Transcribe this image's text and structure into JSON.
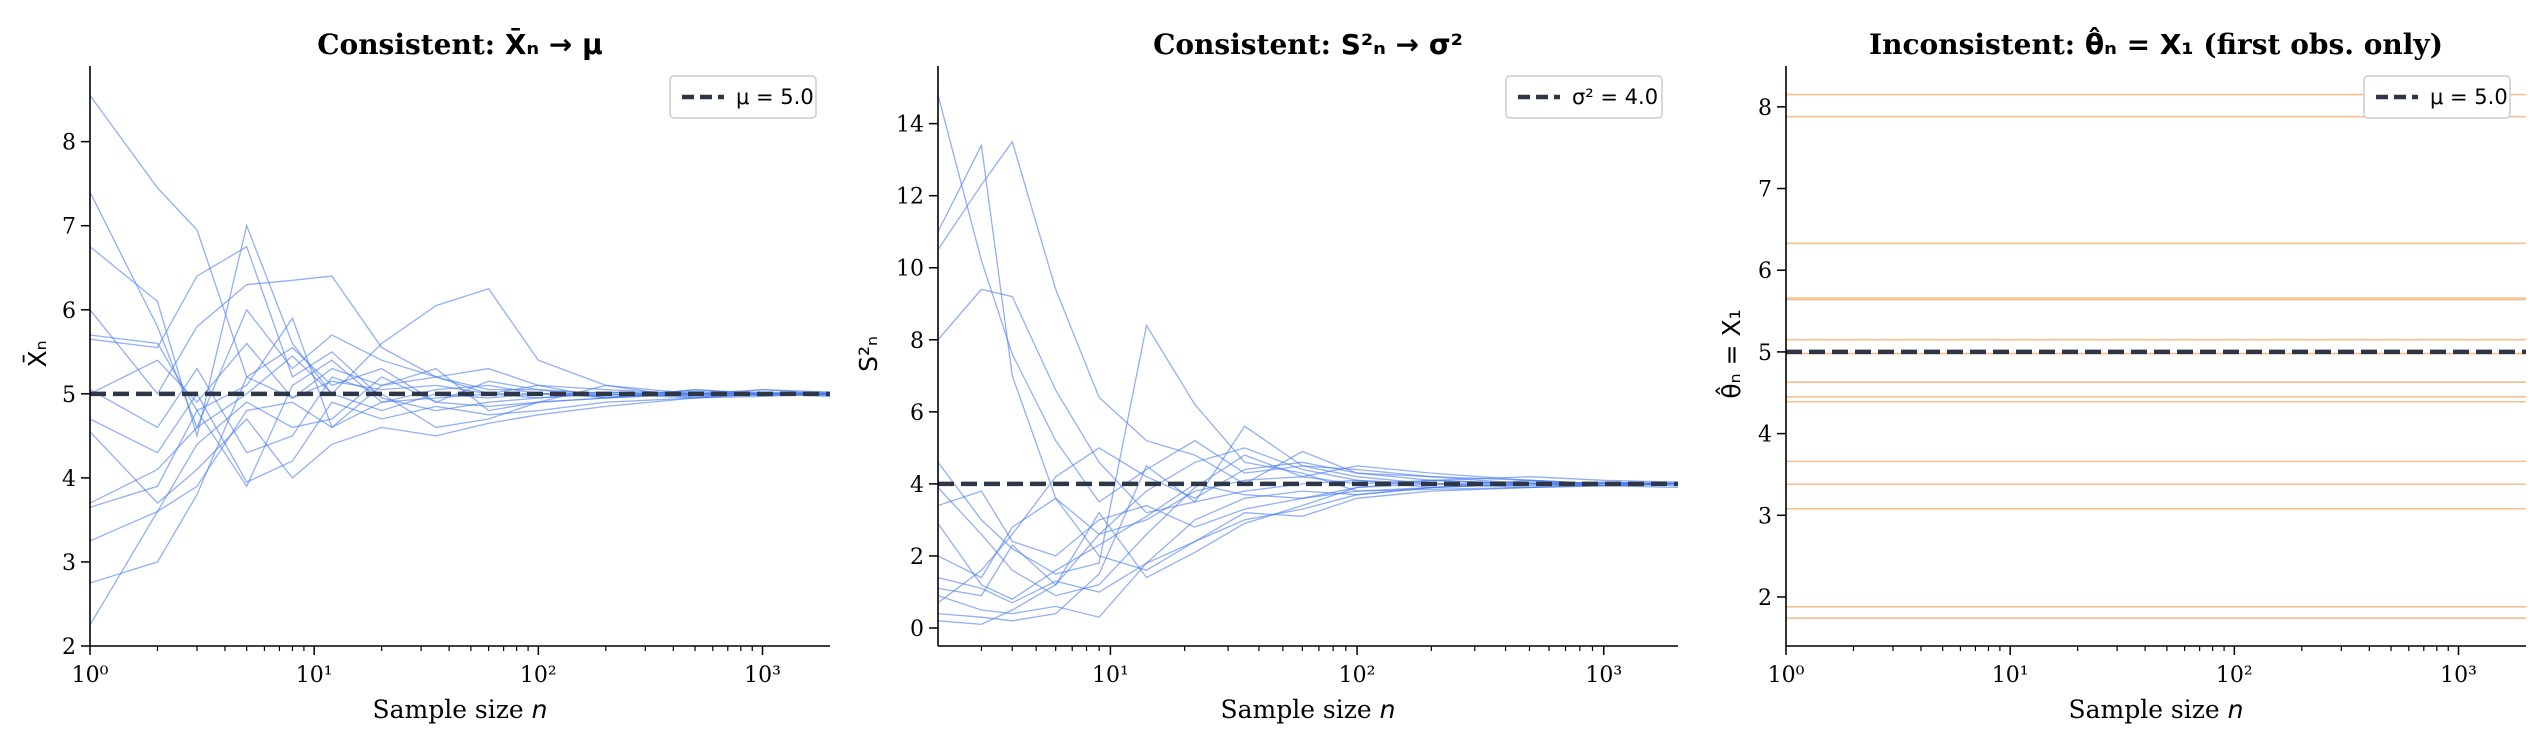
{
  "colors": {
    "path_line": "#4a7cf0",
    "inconsistent_line": "#f6b47a",
    "true_value_line": "#2d3748",
    "legend_border": "#cccccc"
  },
  "chart_data": [
    {
      "type": "line",
      "title_main": "Consistent: ",
      "title_math": "X̄ₙ → μ",
      "xlabel_main": "Sample size ",
      "xlabel_math": "n",
      "ylabel": "X̄ₙ",
      "xscale": "log",
      "xlim": [
        1,
        2000
      ],
      "ylim": [
        2.0,
        8.9
      ],
      "xticks": [
        {
          "value": 1,
          "label": "10⁰"
        },
        {
          "value": 10,
          "label": "10¹"
        },
        {
          "value": 100,
          "label": "10²"
        },
        {
          "value": 1000,
          "label": "10³"
        }
      ],
      "yticks": [
        2,
        3,
        4,
        5,
        6,
        7,
        8
      ],
      "grid": false,
      "reference": {
        "value": 5.0,
        "legend": "μ = 5.0"
      },
      "legend_position": "top-right",
      "path_count": 15,
      "series": [
        {
          "x": [
            1,
            2,
            3,
            5,
            8,
            12,
            20,
            35,
            60,
            100,
            200,
            500,
            1000,
            2000
          ],
          "y": [
            8.55,
            7.45,
            6.95,
            5.2,
            5.55,
            5.1,
            5.3,
            4.9,
            5.15,
            5.05,
            4.95,
            5.05,
            5.0,
            5.0
          ]
        },
        {
          "x": [
            1,
            2,
            3,
            5,
            8,
            12,
            20,
            35,
            60,
            100,
            200,
            500,
            1000,
            2000
          ],
          "y": [
            7.4,
            5.8,
            4.6,
            6.0,
            5.3,
            5.7,
            5.4,
            5.2,
            5.0,
            5.1,
            5.05,
            5.0,
            4.98,
            5.0
          ]
        },
        {
          "x": [
            1,
            2,
            3,
            5,
            8,
            12,
            20,
            35,
            60,
            100,
            200,
            500,
            1000,
            2000
          ],
          "y": [
            6.75,
            6.1,
            4.5,
            7.0,
            5.6,
            5.0,
            5.6,
            6.05,
            6.25,
            5.4,
            5.1,
            5.0,
            5.05,
            5.02
          ]
        },
        {
          "x": [
            1,
            2,
            3,
            5,
            8,
            12,
            20,
            35,
            60,
            100,
            200,
            500,
            1000,
            2000
          ],
          "y": [
            6.0,
            5.0,
            5.8,
            6.3,
            6.35,
            6.4,
            5.55,
            5.2,
            5.3,
            5.1,
            4.95,
            5.05,
            5.0,
            4.98
          ]
        },
        {
          "x": [
            1,
            2,
            3,
            5,
            8,
            12,
            20,
            35,
            60,
            100,
            200,
            500,
            1000,
            2000
          ],
          "y": [
            5.7,
            5.6,
            4.8,
            5.1,
            5.9,
            4.6,
            5.1,
            5.3,
            4.8,
            4.9,
            5.1,
            4.95,
            5.05,
            5.0
          ]
        },
        {
          "x": [
            1,
            2,
            3,
            5,
            8,
            12,
            20,
            35,
            60,
            100,
            200,
            500,
            1000,
            2000
          ],
          "y": [
            5.65,
            5.55,
            6.4,
            6.75,
            5.2,
            5.5,
            4.95,
            4.8,
            4.9,
            4.95,
            5.0,
            4.95,
            4.97,
            5.0
          ]
        },
        {
          "x": [
            1,
            2,
            3,
            5,
            8,
            12,
            20,
            35,
            60,
            100,
            200,
            500,
            1000,
            2000
          ],
          "y": [
            5.05,
            4.6,
            5.3,
            4.3,
            4.5,
            5.2,
            5.0,
            4.6,
            4.7,
            4.9,
            4.95,
            5.0,
            5.02,
            5.0
          ]
        },
        {
          "x": [
            1,
            2,
            3,
            5,
            8,
            12,
            20,
            35,
            60,
            100,
            200,
            500,
            1000,
            2000
          ],
          "y": [
            4.7,
            4.3,
            5.0,
            3.95,
            4.2,
            4.9,
            4.7,
            4.85,
            4.75,
            4.8,
            4.9,
            4.95,
            5.0,
            4.97
          ]
        },
        {
          "x": [
            1,
            2,
            3,
            5,
            8,
            12,
            20,
            35,
            60,
            100,
            200,
            500,
            1000,
            2000
          ],
          "y": [
            4.55,
            3.7,
            4.1,
            4.7,
            4.0,
            4.4,
            4.6,
            4.5,
            4.65,
            4.75,
            4.85,
            4.95,
            5.0,
            5.0
          ]
        },
        {
          "x": [
            1,
            2,
            3,
            5,
            8,
            12,
            20,
            35,
            60,
            100,
            200,
            500,
            1000,
            2000
          ],
          "y": [
            3.7,
            4.1,
            4.6,
            5.0,
            5.45,
            5.0,
            4.8,
            5.0,
            4.95,
            5.0,
            5.02,
            4.98,
            5.01,
            5.0
          ]
        },
        {
          "x": [
            1,
            2,
            3,
            5,
            8,
            12,
            20,
            35,
            60,
            100,
            200,
            500,
            1000,
            2000
          ],
          "y": [
            3.65,
            3.9,
            4.8,
            3.9,
            5.1,
            5.4,
            4.9,
            5.05,
            5.1,
            5.0,
            4.98,
            5.03,
            4.99,
            5.0
          ]
        },
        {
          "x": [
            1,
            2,
            3,
            5,
            8,
            12,
            20,
            35,
            60,
            100,
            200,
            500,
            1000,
            2000
          ],
          "y": [
            3.25,
            3.6,
            4.4,
            4.9,
            4.6,
            4.7,
            5.2,
            4.9,
            4.85,
            4.9,
            4.95,
            5.0,
            5.0,
            5.02
          ]
        },
        {
          "x": [
            1,
            2,
            3,
            5,
            8,
            12,
            20,
            35,
            60,
            100,
            200,
            500,
            1000,
            2000
          ],
          "y": [
            2.75,
            3.0,
            3.8,
            5.2,
            4.95,
            5.3,
            5.1,
            5.2,
            5.05,
            5.05,
            5.0,
            4.97,
            5.0,
            4.99
          ]
        },
        {
          "x": [
            1,
            2,
            3,
            5,
            8,
            12,
            20,
            35,
            60,
            100,
            200,
            500,
            1000,
            2000
          ],
          "y": [
            2.25,
            3.6,
            3.9,
            4.8,
            4.9,
            4.6,
            4.9,
            4.95,
            5.0,
            5.0,
            4.96,
            5.0,
            5.01,
            5.0
          ]
        },
        {
          "x": [
            1,
            2,
            3,
            5,
            8,
            12,
            20,
            35,
            60,
            100,
            200,
            500,
            1000,
            2000
          ],
          "y": [
            5.0,
            5.4,
            4.9,
            5.6,
            4.95,
            5.15,
            5.05,
            5.1,
            5.0,
            4.95,
            5.02,
            5.0,
            4.99,
            5.01
          ]
        }
      ]
    },
    {
      "type": "line",
      "title_main": "Consistent: ",
      "title_math": "S²ₙ → σ²",
      "xlabel_main": "Sample size ",
      "xlabel_math": "n",
      "ylabel": "S²ₙ",
      "xscale": "log",
      "xlim": [
        2,
        2000
      ],
      "ylim": [
        -0.5,
        15.6
      ],
      "xticks": [
        {
          "value": 10,
          "label": "10¹"
        },
        {
          "value": 100,
          "label": "10²"
        },
        {
          "value": 1000,
          "label": "10³"
        }
      ],
      "yticks": [
        0,
        2,
        4,
        6,
        8,
        10,
        12,
        14
      ],
      "grid": false,
      "reference": {
        "value": 4.0,
        "legend": "σ² = 4.0"
      },
      "legend_position": "top-right",
      "path_count": 15,
      "series": [
        {
          "x": [
            2,
            3,
            4,
            6,
            9,
            14,
            22,
            35,
            60,
            100,
            200,
            500,
            1000,
            2000
          ],
          "y": [
            14.8,
            10.2,
            7.6,
            5.2,
            3.5,
            4.4,
            5.2,
            4.3,
            4.5,
            4.2,
            4.0,
            3.9,
            4.0,
            4.0
          ]
        },
        {
          "x": [
            2,
            3,
            4,
            6,
            9,
            14,
            22,
            35,
            60,
            100,
            200,
            500,
            1000,
            2000
          ],
          "y": [
            11.0,
            13.4,
            7.0,
            3.6,
            2.6,
            3.8,
            4.6,
            5.0,
            4.4,
            4.1,
            3.9,
            4.1,
            4.0,
            4.0
          ]
        },
        {
          "x": [
            2,
            3,
            4,
            6,
            9,
            14,
            22,
            35,
            60,
            100,
            200,
            500,
            1000,
            2000
          ],
          "y": [
            10.5,
            12.3,
            13.5,
            9.4,
            6.4,
            5.2,
            4.8,
            4.0,
            4.9,
            4.3,
            4.1,
            4.0,
            3.95,
            4.0
          ]
        },
        {
          "x": [
            2,
            3,
            4,
            6,
            9,
            14,
            22,
            35,
            60,
            100,
            200,
            500,
            1000,
            2000
          ],
          "y": [
            8.0,
            9.4,
            9.2,
            6.6,
            4.6,
            3.2,
            3.5,
            5.6,
            4.5,
            4.4,
            4.2,
            4.0,
            4.05,
            4.0
          ]
        },
        {
          "x": [
            2,
            3,
            4,
            6,
            9,
            14,
            22,
            35,
            60,
            100,
            200,
            500,
            1000,
            2000
          ],
          "y": [
            4.6,
            3.0,
            2.2,
            1.5,
            1.8,
            8.4,
            6.2,
            4.6,
            4.3,
            3.8,
            3.9,
            4.0,
            4.0,
            3.95
          ]
        },
        {
          "x": [
            2,
            3,
            4,
            6,
            9,
            14,
            22,
            35,
            60,
            100,
            200,
            500,
            1000,
            2000
          ],
          "y": [
            3.9,
            2.6,
            1.6,
            0.9,
            1.2,
            2.6,
            3.9,
            4.8,
            4.2,
            4.5,
            4.3,
            4.1,
            4.0,
            4.0
          ]
        },
        {
          "x": [
            2,
            3,
            4,
            6,
            9,
            14,
            22,
            35,
            60,
            100,
            200,
            500,
            1000,
            2000
          ],
          "y": [
            3.4,
            3.8,
            2.4,
            2.0,
            3.0,
            3.4,
            2.8,
            3.3,
            3.6,
            3.8,
            3.85,
            3.9,
            3.95,
            3.9
          ]
        },
        {
          "x": [
            2,
            3,
            4,
            6,
            9,
            14,
            22,
            35,
            60,
            100,
            200,
            500,
            1000,
            2000
          ],
          "y": [
            2.9,
            1.2,
            0.8,
            1.6,
            2.3,
            3.1,
            4.0,
            3.7,
            3.6,
            3.9,
            4.1,
            4.2,
            4.1,
            4.05
          ]
        },
        {
          "x": [
            2,
            3,
            4,
            6,
            9,
            14,
            22,
            35,
            60,
            100,
            200,
            500,
            1000,
            2000
          ],
          "y": [
            2.0,
            1.4,
            2.8,
            3.6,
            2.0,
            1.6,
            2.4,
            3.2,
            3.1,
            3.6,
            3.8,
            3.9,
            3.95,
            4.0
          ]
        },
        {
          "x": [
            2,
            3,
            4,
            6,
            9,
            14,
            22,
            35,
            60,
            100,
            200,
            500,
            1000,
            2000
          ],
          "y": [
            1.4,
            1.1,
            0.7,
            1.3,
            1.0,
            1.8,
            3.0,
            3.6,
            3.8,
            3.7,
            3.9,
            4.0,
            4.0,
            4.0
          ]
        },
        {
          "x": [
            2,
            3,
            4,
            6,
            9,
            14,
            22,
            35,
            60,
            100,
            200,
            500,
            1000,
            2000
          ],
          "y": [
            1.1,
            0.9,
            2.3,
            1.2,
            3.2,
            1.4,
            2.1,
            2.9,
            3.4,
            3.9,
            4.0,
            3.95,
            4.0,
            4.0
          ]
        },
        {
          "x": [
            2,
            3,
            4,
            6,
            9,
            14,
            22,
            35,
            60,
            100,
            200,
            500,
            1000,
            2000
          ],
          "y": [
            0.9,
            0.5,
            0.4,
            0.6,
            0.3,
            1.8,
            2.4,
            3.0,
            3.3,
            3.7,
            3.9,
            4.0,
            4.05,
            4.0
          ]
        },
        {
          "x": [
            2,
            3,
            4,
            6,
            9,
            14,
            22,
            35,
            60,
            100,
            200,
            500,
            1000,
            2000
          ],
          "y": [
            0.4,
            0.3,
            0.2,
            0.4,
            1.5,
            4.5,
            3.5,
            3.8,
            4.0,
            4.1,
            4.0,
            4.05,
            4.0,
            4.0
          ]
        },
        {
          "x": [
            2,
            3,
            4,
            6,
            9,
            14,
            22,
            35,
            60,
            100,
            200,
            500,
            1000,
            2000
          ],
          "y": [
            0.2,
            0.1,
            0.5,
            1.2,
            2.6,
            3.0,
            3.8,
            4.1,
            4.2,
            4.0,
            4.1,
            4.0,
            3.95,
            4.0
          ]
        },
        {
          "x": [
            2,
            3,
            4,
            6,
            9,
            14,
            22,
            35,
            60,
            100,
            200,
            500,
            1000,
            2000
          ],
          "y": [
            0.7,
            1.6,
            2.6,
            4.2,
            5.0,
            4.2,
            3.6,
            4.4,
            4.6,
            4.3,
            4.2,
            4.1,
            4.0,
            4.05
          ]
        }
      ]
    },
    {
      "type": "line",
      "title_main": "Inconsistent: ",
      "title_math": "θ̂ₙ = X₁",
      "title_suffix": " (first obs. only)",
      "xlabel_main": "Sample size ",
      "xlabel_math": "n",
      "ylabel": "θ̂ₙ = X₁",
      "xscale": "log",
      "xlim": [
        1,
        2000
      ],
      "ylim": [
        1.4,
        8.5
      ],
      "xticks": [
        {
          "value": 1,
          "label": "10⁰"
        },
        {
          "value": 10,
          "label": "10¹"
        },
        {
          "value": 100,
          "label": "10²"
        },
        {
          "value": 1000,
          "label": "10³"
        }
      ],
      "yticks": [
        2,
        3,
        4,
        5,
        6,
        7,
        8
      ],
      "grid": false,
      "reference": {
        "value": 5.0,
        "legend": "μ = 5.0"
      },
      "legend_position": "top-right",
      "path_count": 15,
      "constant_values": [
        8.15,
        7.88,
        6.33,
        5.66,
        5.64,
        5.15,
        4.63,
        4.45,
        4.39,
        3.66,
        3.38,
        3.08,
        1.88,
        1.74,
        4.98
      ]
    }
  ]
}
